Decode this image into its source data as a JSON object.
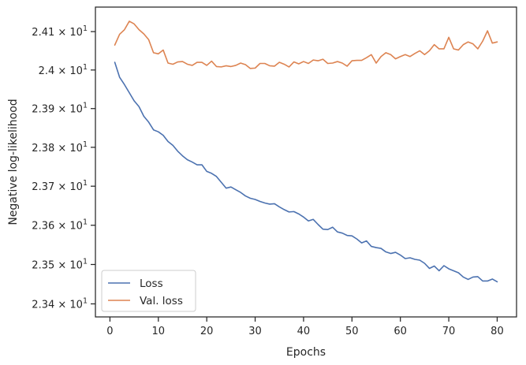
{
  "chart_data": {
    "type": "line",
    "title": "",
    "xlabel": "Epochs",
    "ylabel": "Negative log-likelihood",
    "xlim": [
      -3,
      84
    ],
    "ylim": [
      23.367,
      24.164
    ],
    "yscale": "log",
    "grid": false,
    "legend_position": "lower-left",
    "xticks": [
      {
        "value": 0,
        "label": "0"
      },
      {
        "value": 10,
        "label": "10"
      },
      {
        "value": 20,
        "label": "20"
      },
      {
        "value": 30,
        "label": "30"
      },
      {
        "value": 40,
        "label": "40"
      },
      {
        "value": 50,
        "label": "50"
      },
      {
        "value": 60,
        "label": "60"
      },
      {
        "value": 70,
        "label": "70"
      },
      {
        "value": 80,
        "label": "80"
      }
    ],
    "yticks": [
      {
        "value": 24.1,
        "mant": "2.41",
        "exp": "1"
      },
      {
        "value": 24.0,
        "mant": "2.4",
        "exp": "1"
      },
      {
        "value": 23.9,
        "mant": "2.39",
        "exp": "1"
      },
      {
        "value": 23.8,
        "mant": "2.38",
        "exp": "1"
      },
      {
        "value": 23.7,
        "mant": "2.37",
        "exp": "1"
      },
      {
        "value": 23.6,
        "mant": "2.36",
        "exp": "1"
      },
      {
        "value": 23.5,
        "mant": "2.35",
        "exp": "1"
      },
      {
        "value": 23.4,
        "mant": "2.34",
        "exp": "1"
      }
    ],
    "times_sign": "×",
    "base": "10",
    "x": [
      1,
      2,
      3,
      4,
      5,
      6,
      7,
      8,
      9,
      10,
      11,
      12,
      13,
      14,
      15,
      16,
      17,
      18,
      19,
      20,
      21,
      22,
      23,
      24,
      25,
      26,
      27,
      28,
      29,
      30,
      31,
      32,
      33,
      34,
      35,
      36,
      37,
      38,
      39,
      40,
      41,
      42,
      43,
      44,
      45,
      46,
      47,
      48,
      49,
      50,
      51,
      52,
      53,
      54,
      55,
      56,
      57,
      58,
      59,
      60,
      61,
      62,
      63,
      64,
      65,
      66,
      67,
      68,
      69,
      70,
      71,
      72,
      73,
      74,
      75,
      76,
      77,
      78,
      79,
      80
    ],
    "series": [
      {
        "name": "Loss",
        "color": "#4c72b0",
        "values": [
          24.02,
          23.981,
          23.962,
          23.941,
          23.92,
          23.905,
          23.88,
          23.865,
          23.845,
          23.84,
          23.831,
          23.815,
          23.805,
          23.79,
          23.778,
          23.768,
          23.762,
          23.755,
          23.755,
          23.738,
          23.733,
          23.725,
          23.71,
          23.695,
          23.698,
          23.691,
          23.684,
          23.675,
          23.669,
          23.666,
          23.661,
          23.657,
          23.654,
          23.655,
          23.647,
          23.64,
          23.634,
          23.635,
          23.629,
          23.621,
          23.611,
          23.615,
          23.602,
          23.59,
          23.589,
          23.595,
          23.583,
          23.58,
          23.574,
          23.573,
          23.565,
          23.555,
          23.56,
          23.546,
          23.543,
          23.541,
          23.532,
          23.528,
          23.531,
          23.524,
          23.515,
          23.517,
          23.513,
          23.511,
          23.503,
          23.49,
          23.496,
          23.484,
          23.497,
          23.489,
          23.484,
          23.479,
          23.468,
          23.462,
          23.468,
          23.469,
          23.458,
          23.458,
          23.463,
          23.456
        ]
      },
      {
        "name": "Val. loss",
        "color": "#dd8452",
        "values": [
          24.065,
          24.093,
          24.105,
          24.127,
          24.12,
          24.105,
          24.094,
          24.079,
          24.045,
          24.042,
          24.052,
          24.018,
          24.015,
          24.021,
          24.022,
          24.015,
          24.012,
          24.02,
          24.02,
          24.012,
          24.023,
          24.009,
          24.008,
          24.011,
          24.009,
          24.012,
          24.018,
          24.014,
          24.004,
          24.005,
          24.017,
          24.017,
          24.011,
          24.01,
          24.02,
          24.015,
          24.008,
          24.021,
          24.016,
          24.022,
          24.017,
          24.026,
          24.024,
          24.028,
          24.017,
          24.018,
          24.022,
          24.018,
          24.01,
          24.024,
          24.025,
          24.025,
          24.032,
          24.04,
          24.018,
          24.035,
          24.045,
          24.04,
          24.029,
          24.035,
          24.04,
          24.035,
          24.043,
          24.05,
          24.04,
          24.05,
          24.066,
          24.055,
          24.055,
          24.085,
          24.055,
          24.052,
          24.066,
          24.073,
          24.068,
          24.055,
          24.075,
          24.102,
          24.07,
          24.073
        ]
      }
    ]
  }
}
